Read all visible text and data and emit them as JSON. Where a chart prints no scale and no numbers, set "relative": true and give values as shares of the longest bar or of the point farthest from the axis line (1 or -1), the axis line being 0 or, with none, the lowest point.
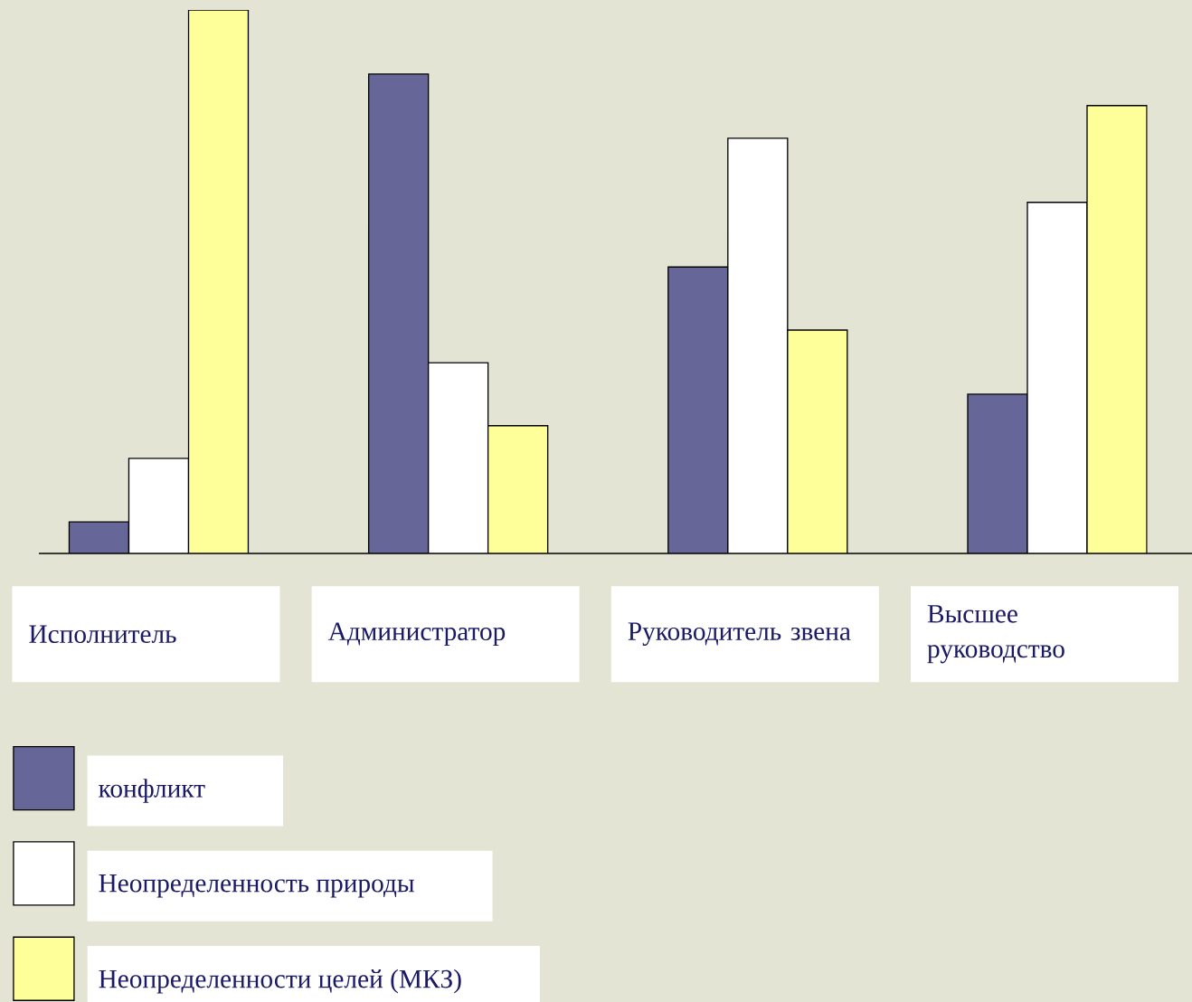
{
  "chart_data": {
    "type": "bar",
    "relative": true,
    "legend": "bottom left",
    "categories": [
      "Исполнитель",
      "Администратор",
      "Руководитель звена",
      "Высшее руководство"
    ],
    "series": [
      {
        "name": "конфликт",
        "color": "#666699",
        "values": [
          0.058,
          0.882,
          0.527,
          0.293
        ]
      },
      {
        "name": "Неопределенность природы",
        "color": "#ffffff",
        "values": [
          0.175,
          0.351,
          0.764,
          0.646
        ]
      },
      {
        "name": "Неопределенности целей (МКЗ)",
        "color": "#ffff99",
        "values": [
          1,
          0.235,
          0.411,
          0.824
        ]
      }
    ]
  }
}
